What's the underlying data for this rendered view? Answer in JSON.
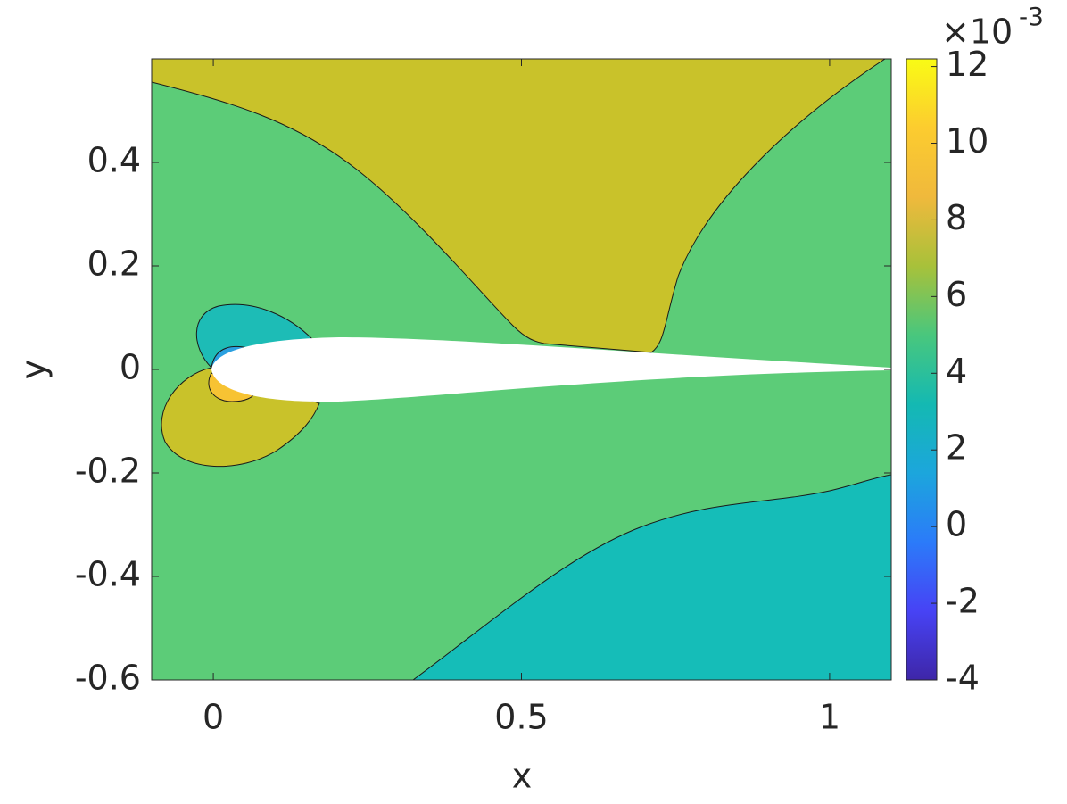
{
  "chart_data": {
    "type": "contour",
    "xlabel": "x",
    "ylabel": "y",
    "xlim": [
      -0.1,
      1.1
    ],
    "xticks": [
      0,
      0.5,
      1
    ],
    "ylim": [
      -0.6,
      0.6
    ],
    "yticks": [
      -0.6,
      -0.4,
      -0.2,
      0,
      0.2,
      0.4
    ],
    "colorbar": {
      "clim": [
        -4,
        12.2
      ],
      "ticks": [
        -4,
        -2,
        0,
        2,
        4,
        6,
        8,
        10,
        12
      ],
      "multiplier": "×10",
      "exponent": "-3",
      "colormap": [
        "#3e26a8",
        "#4743f5",
        "#2b7bf9",
        "#1ca6dc",
        "#14b9b2",
        "#49c77d",
        "#a8c13a",
        "#f0b93c",
        "#fccc2f",
        "#f9fb15"
      ]
    }
  }
}
